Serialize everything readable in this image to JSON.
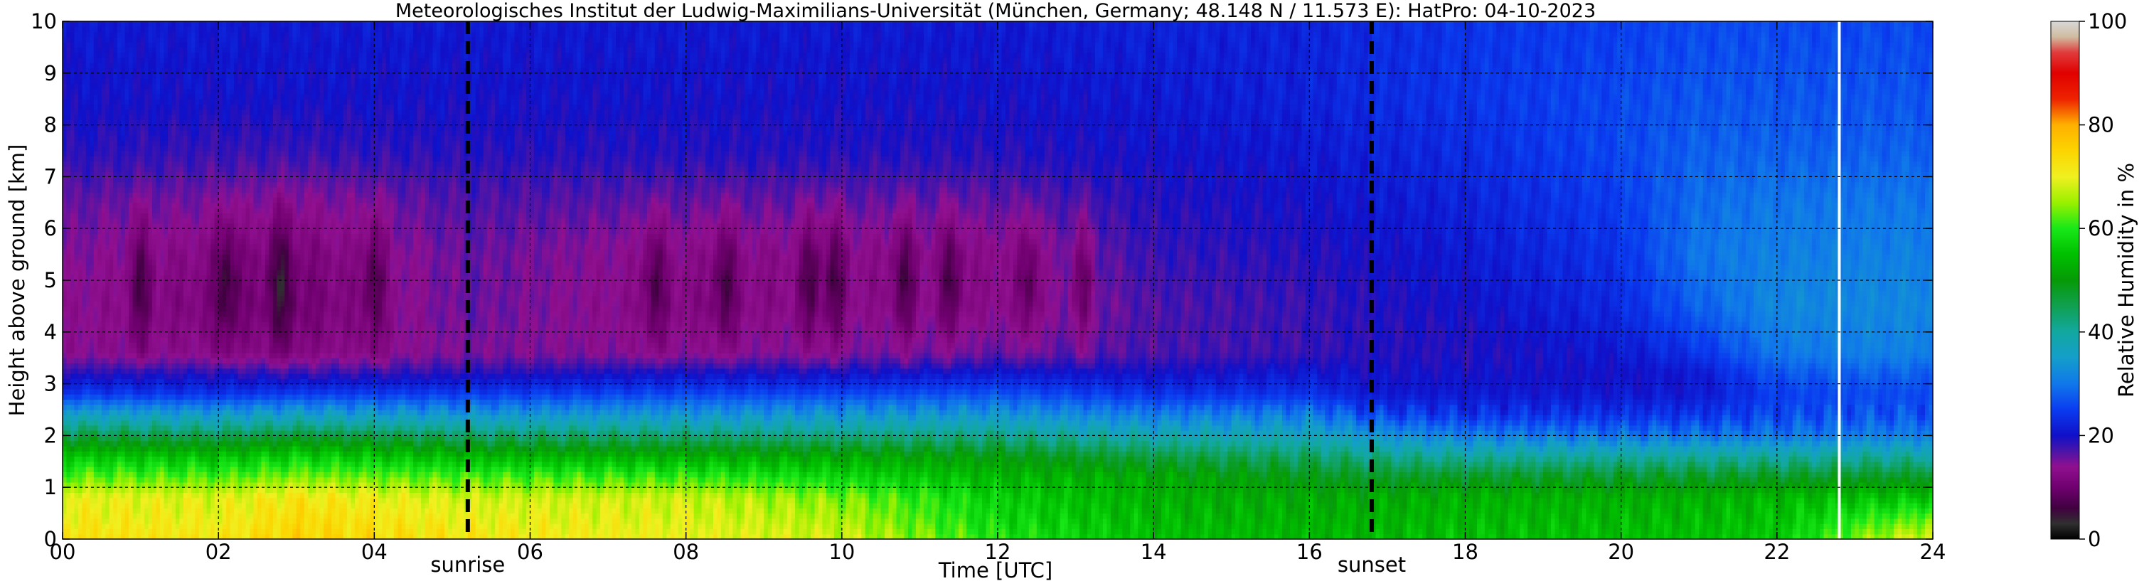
{
  "chart_data": {
    "type": "heatmap",
    "title": "Meteorologisches Institut der Ludwig-Maximilians-Universität (München, Germany; 48.148 N / 11.573 E):    HatPro: 04-10-2023",
    "xlabel": "Time [UTC]",
    "ylabel": "Height above ground [km]",
    "xlim": [
      0,
      24
    ],
    "ylim": [
      0,
      10
    ],
    "x_ticks": [
      {
        "value": 0,
        "label": "00"
      },
      {
        "value": 2,
        "label": "02"
      },
      {
        "value": 4,
        "label": "04"
      },
      {
        "value": 6,
        "label": "06"
      },
      {
        "value": 8,
        "label": "08"
      },
      {
        "value": 10,
        "label": "10"
      },
      {
        "value": 12,
        "label": "12"
      },
      {
        "value": 14,
        "label": "14"
      },
      {
        "value": 16,
        "label": "16"
      },
      {
        "value": 18,
        "label": "18"
      },
      {
        "value": 20,
        "label": "20"
      },
      {
        "value": 22,
        "label": "22"
      },
      {
        "value": 24,
        "label": "24"
      }
    ],
    "y_ticks": [
      {
        "value": 0,
        "label": "0"
      },
      {
        "value": 1,
        "label": "1"
      },
      {
        "value": 2,
        "label": "2"
      },
      {
        "value": 3,
        "label": "3"
      },
      {
        "value": 4,
        "label": "4"
      },
      {
        "value": 5,
        "label": "5"
      },
      {
        "value": 6,
        "label": "6"
      },
      {
        "value": 7,
        "label": "7"
      },
      {
        "value": 8,
        "label": "8"
      },
      {
        "value": 9,
        "label": "9"
      },
      {
        "value": 10,
        "label": "10"
      }
    ],
    "grid": true,
    "events": [
      {
        "name": "sunrise",
        "time": 5.2
      },
      {
        "name": "sunset",
        "time": 16.8
      }
    ],
    "colorbar": {
      "label": "Relative Humidity in %",
      "range": [
        0,
        100
      ],
      "ticks": [
        {
          "value": 0,
          "label": "0"
        },
        {
          "value": 20,
          "label": "20"
        },
        {
          "value": 40,
          "label": "40"
        },
        {
          "value": 60,
          "label": "60"
        },
        {
          "value": 80,
          "label": "80"
        },
        {
          "value": 100,
          "label": "100"
        }
      ],
      "stops": [
        {
          "value": 0,
          "color": "#000000"
        },
        {
          "value": 3,
          "color": "#303030"
        },
        {
          "value": 6,
          "color": "#400040"
        },
        {
          "value": 10,
          "color": "#700070"
        },
        {
          "value": 14,
          "color": "#901090"
        },
        {
          "value": 17,
          "color": "#4a14a8"
        },
        {
          "value": 20,
          "color": "#1010c8"
        },
        {
          "value": 25,
          "color": "#0a3cf0"
        },
        {
          "value": 30,
          "color": "#1078ea"
        },
        {
          "value": 35,
          "color": "#149eca"
        },
        {
          "value": 40,
          "color": "#12a8a0"
        },
        {
          "value": 45,
          "color": "#10a050"
        },
        {
          "value": 50,
          "color": "#069a06"
        },
        {
          "value": 55,
          "color": "#00c000"
        },
        {
          "value": 60,
          "color": "#18e818"
        },
        {
          "value": 65,
          "color": "#9af000"
        },
        {
          "value": 70,
          "color": "#f0f020"
        },
        {
          "value": 75,
          "color": "#fcd400"
        },
        {
          "value": 80,
          "color": "#ffb000"
        },
        {
          "value": 85,
          "color": "#ee2200"
        },
        {
          "value": 90,
          "color": "#e00000"
        },
        {
          "value": 94,
          "color": "#e03c3c"
        },
        {
          "value": 97,
          "color": "#d0bca0"
        },
        {
          "value": 100,
          "color": "#d8d8d8"
        }
      ]
    },
    "field": {
      "description_times": [
        0,
        2,
        4,
        5.2,
        6,
        8,
        10,
        12,
        14,
        16,
        16.8,
        18,
        20,
        21,
        22,
        24
      ],
      "heights": [
        0,
        0.4,
        0.8,
        1.2,
        1.6,
        2.0,
        2.4,
        2.8,
        3.2,
        3.6,
        4.5,
        5.5,
        6.5,
        7.5,
        8.5,
        10
      ],
      "rh_profiles": [
        {
          "time": 0,
          "rh": [
            73,
            71,
            70,
            63,
            56,
            46,
            36,
            25,
            19,
            14,
            14,
            15,
            16,
            19,
            20,
            21
          ]
        },
        {
          "time": 2,
          "rh": [
            72,
            70,
            69,
            62,
            55,
            45,
            35,
            24,
            19,
            13,
            11,
            12,
            15,
            18,
            20,
            21
          ]
        },
        {
          "time": 3,
          "rh": [
            75,
            74,
            72,
            64,
            57,
            47,
            36,
            25,
            18,
            12,
            10,
            11,
            14,
            18,
            20,
            21
          ]
        },
        {
          "time": 5.2,
          "rh": [
            72,
            70,
            68,
            62,
            54,
            44,
            34,
            25,
            19,
            15,
            16,
            16,
            17,
            19,
            20,
            21
          ]
        },
        {
          "time": 8,
          "rh": [
            70,
            69,
            68,
            61,
            53,
            43,
            34,
            26,
            20,
            14,
            12,
            13,
            16,
            19,
            20,
            21
          ]
        },
        {
          "time": 10,
          "rh": [
            68,
            66,
            64,
            58,
            52,
            42,
            34,
            26,
            20,
            15,
            13,
            13,
            16,
            19,
            20,
            21
          ]
        },
        {
          "time": 12,
          "rh": [
            60,
            58,
            57,
            54,
            50,
            42,
            34,
            27,
            21,
            16,
            13,
            13,
            16,
            19,
            20,
            21
          ]
        },
        {
          "time": 14,
          "rh": [
            55,
            54,
            53,
            52,
            46,
            38,
            31,
            24,
            20,
            17,
            17,
            18,
            19,
            20,
            21,
            22
          ]
        },
        {
          "time": 16,
          "rh": [
            54,
            53,
            52,
            49,
            44,
            37,
            31,
            24,
            21,
            18,
            18,
            19,
            20,
            21,
            22,
            22
          ]
        },
        {
          "time": 16.8,
          "rh": [
            54,
            53,
            52,
            48,
            42,
            34,
            26,
            21,
            20,
            19,
            19,
            20,
            21,
            22,
            23,
            23
          ]
        },
        {
          "time": 18,
          "rh": [
            55,
            54,
            53,
            48,
            40,
            31,
            24,
            21,
            20,
            19,
            20,
            21,
            22,
            23,
            24,
            24
          ]
        },
        {
          "time": 20,
          "rh": [
            55,
            54,
            53,
            48,
            40,
            30,
            24,
            21,
            20,
            21,
            23,
            24,
            25,
            26,
            26,
            25
          ]
        },
        {
          "time": 21,
          "rh": [
            55,
            54,
            53,
            48,
            40,
            30,
            24,
            21,
            21,
            24,
            28,
            30,
            29,
            28,
            27,
            26
          ]
        },
        {
          "time": 22,
          "rh": [
            56,
            55,
            54,
            48,
            40,
            30,
            26,
            25,
            27,
            30,
            32,
            31,
            30,
            28,
            27,
            26
          ]
        },
        {
          "time": 23,
          "rh": [
            64,
            60,
            55,
            48,
            40,
            31,
            27,
            26,
            28,
            31,
            32,
            31,
            30,
            28,
            27,
            26
          ]
        },
        {
          "time": 24,
          "rh": [
            70,
            63,
            56,
            48,
            40,
            31,
            27,
            26,
            28,
            31,
            32,
            31,
            30,
            28,
            27,
            26
          ]
        }
      ],
      "purple_patches_hours": [
        1.0,
        2.1,
        2.8,
        4.0,
        7.6,
        8.5,
        9.6,
        9.9,
        10.8,
        11.4,
        12.4,
        13.1
      ],
      "data_gap_time": 22.8
    }
  }
}
